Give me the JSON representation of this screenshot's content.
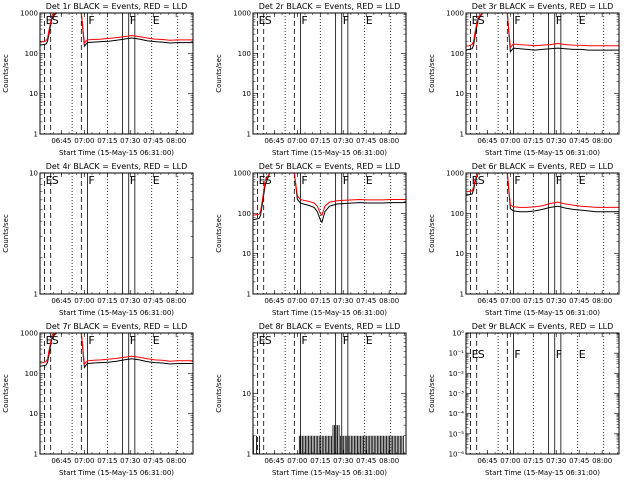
{
  "figure": {
    "colors": {
      "events": "#000000",
      "lld": "#ff0000",
      "frame": "#000000"
    },
    "ylabel": "Counts/sec",
    "xlabel": "Start Time (15-May-15 06:31:00)",
    "x_tick_labels": [
      "06:45",
      "07:00",
      "07:15",
      "07:30",
      "07:45",
      "08:00"
    ],
    "x_tick_values_min": [
      14,
      29,
      44,
      59,
      74,
      89
    ],
    "xlim_min": [
      0,
      100
    ],
    "markers": [
      {
        "label": "E",
        "x": 3,
        "style": "dashed"
      },
      {
        "label": "S",
        "x": 7,
        "style": "dashed"
      },
      {
        "label": "",
        "x": 21,
        "style": "dotted"
      },
      {
        "label": "",
        "x": 27,
        "style": "dashed"
      },
      {
        "label": "F",
        "x": 31,
        "style": "solid"
      },
      {
        "label": "",
        "x": 44,
        "style": "dotted"
      },
      {
        "label": "",
        "x": 54,
        "style": "solid"
      },
      {
        "label": "F",
        "x": 58,
        "style": "solid"
      },
      {
        "label": "",
        "x": 62,
        "style": "solid"
      },
      {
        "label": "E",
        "x": 73,
        "style": "dotted"
      },
      {
        "label": "",
        "x": 90,
        "style": "dotted"
      }
    ]
  },
  "chart_data": [
    {
      "type": "line",
      "det": "1r",
      "title": "Det 1r BLACK = Events, RED = LLD",
      "scale": "log",
      "ylim": [
        1,
        1000
      ],
      "ytick_labels": [
        "1",
        "10",
        "100",
        "1000"
      ],
      "ytick_values": [
        1,
        10,
        100,
        1000
      ],
      "marker_labels_y": 1000,
      "series": [
        {
          "name": "Events",
          "color": "#000000",
          "x": [
            0,
            2,
            4,
            5,
            6,
            8,
            11,
            13,
            16,
            20,
            25,
            27,
            29,
            31,
            35,
            40,
            45,
            50,
            55,
            60,
            65,
            70,
            75,
            80,
            85,
            90,
            95,
            100
          ],
          "y": [
            160,
            165,
            170,
            200,
            320,
            800,
            1000,
            1000,
            1000,
            1000,
            1000,
            1000,
            150,
            185,
            190,
            195,
            200,
            210,
            225,
            240,
            225,
            205,
            195,
            190,
            180,
            185,
            185,
            185
          ]
        },
        {
          "name": "LLD",
          "color": "#ff0000",
          "x": [
            0,
            2,
            4,
            5,
            6,
            8,
            11,
            13,
            16,
            20,
            25,
            27,
            29,
            31,
            35,
            40,
            45,
            50,
            55,
            60,
            65,
            70,
            75,
            80,
            85,
            90,
            95,
            100
          ],
          "y": [
            190,
            195,
            205,
            240,
            400,
            900,
            1000,
            1000,
            1000,
            1000,
            1000,
            1000,
            180,
            215,
            220,
            225,
            235,
            245,
            260,
            275,
            260,
            240,
            225,
            220,
            210,
            215,
            215,
            215
          ]
        }
      ]
    },
    {
      "type": "line",
      "det": "2r",
      "title": "Det 2r BLACK = Events, RED = LLD",
      "scale": "log",
      "ylim": [
        1,
        1000
      ],
      "ytick_labels": [
        "1",
        "10",
        "100",
        "1000"
      ],
      "ytick_values": [
        1,
        10,
        100,
        1000
      ],
      "marker_labels_y": 1000,
      "series": []
    },
    {
      "type": "line",
      "det": "3r",
      "title": "Det 3r BLACK = Events, RED = LLD",
      "scale": "log",
      "ylim": [
        1,
        1000
      ],
      "ytick_labels": [
        "1",
        "10",
        "100",
        "1000"
      ],
      "ytick_values": [
        1,
        10,
        100,
        1000
      ],
      "marker_labels_y": 1000,
      "series": [
        {
          "name": "Events",
          "color": "#000000",
          "x": [
            0,
            2,
            4,
            5,
            6,
            8,
            11,
            13,
            16,
            20,
            25,
            27,
            29,
            31,
            35,
            40,
            45,
            50,
            55,
            60,
            65,
            70,
            75,
            80,
            85,
            90,
            95,
            100
          ],
          "y": [
            120,
            125,
            130,
            160,
            280,
            700,
            1000,
            1000,
            1000,
            1000,
            1000,
            1000,
            110,
            135,
            130,
            125,
            120,
            125,
            130,
            135,
            130,
            125,
            125,
            120,
            120,
            120,
            120,
            120
          ]
        },
        {
          "name": "LLD",
          "color": "#ff0000",
          "x": [
            0,
            2,
            4,
            5,
            6,
            8,
            11,
            13,
            16,
            20,
            25,
            27,
            29,
            31,
            35,
            40,
            45,
            50,
            55,
            60,
            65,
            70,
            75,
            80,
            85,
            90,
            95,
            100
          ],
          "y": [
            150,
            155,
            165,
            200,
            350,
            800,
            1000,
            1000,
            1000,
            1000,
            1000,
            1000,
            140,
            170,
            165,
            160,
            155,
            160,
            165,
            175,
            165,
            160,
            158,
            155,
            155,
            155,
            155,
            155
          ]
        }
      ]
    },
    {
      "type": "line",
      "det": "4r",
      "title": "Det 4r BLACK = Events, RED = LLD",
      "scale": "log",
      "ylim": [
        1,
        10
      ],
      "ytick_labels": [
        "1",
        "10"
      ],
      "ytick_values": [
        1,
        10
      ],
      "marker_labels_y": 10,
      "series": []
    },
    {
      "type": "line",
      "det": "5r",
      "title": "Det 5r BLACK = Events, RED = LLD",
      "scale": "log",
      "ylim": [
        1,
        1000
      ],
      "ytick_labels": [
        "1",
        "10",
        "100",
        "1000"
      ],
      "ytick_values": [
        1,
        10,
        100,
        1000
      ],
      "marker_labels_y": 1000,
      "series": [
        {
          "name": "Events",
          "color": "#000000",
          "x": [
            0,
            2,
            4,
            5,
            6,
            8,
            11,
            13,
            16,
            20,
            25,
            27,
            29,
            31,
            33,
            36,
            40,
            42,
            44,
            45,
            47,
            50,
            55,
            60,
            65,
            70,
            75,
            80,
            85,
            90,
            95,
            100
          ],
          "y": [
            70,
            72,
            75,
            90,
            160,
            500,
            1000,
            1000,
            1000,
            1000,
            1000,
            1000,
            220,
            180,
            170,
            160,
            140,
            110,
            70,
            60,
            110,
            150,
            170,
            175,
            180,
            185,
            180,
            180,
            180,
            185,
            185,
            185
          ]
        },
        {
          "name": "LLD",
          "color": "#ff0000",
          "x": [
            0,
            2,
            4,
            5,
            6,
            8,
            11,
            13,
            16,
            20,
            25,
            27,
            29,
            31,
            33,
            36,
            40,
            42,
            44,
            45,
            47,
            50,
            55,
            60,
            65,
            70,
            75,
            80,
            85,
            90,
            95,
            100
          ],
          "y": [
            90,
            92,
            95,
            115,
            200,
            650,
            1000,
            1000,
            1000,
            1000,
            1000,
            1000,
            270,
            220,
            210,
            200,
            180,
            150,
            100,
            90,
            150,
            190,
            205,
            210,
            215,
            220,
            215,
            215,
            215,
            220,
            220,
            220
          ]
        }
      ]
    },
    {
      "type": "line",
      "det": "6r",
      "title": "Det 6r BLACK = Events, RED = LLD",
      "scale": "log",
      "ylim": [
        1,
        1000
      ],
      "ytick_labels": [
        "1",
        "10",
        "100",
        "1000"
      ],
      "ytick_values": [
        1,
        10,
        100,
        1000
      ],
      "marker_labels_y": 1000,
      "series": [
        {
          "name": "Events",
          "color": "#000000",
          "x": [
            0,
            2,
            4,
            5,
            6,
            8,
            11,
            13,
            16,
            20,
            25,
            27,
            29,
            31,
            35,
            40,
            45,
            50,
            55,
            60,
            65,
            70,
            75,
            80,
            85,
            90,
            95,
            100
          ],
          "y": [
            280,
            290,
            300,
            380,
            600,
            1000,
            1000,
            1000,
            1000,
            1000,
            1000,
            1000,
            130,
            115,
            110,
            110,
            115,
            125,
            140,
            150,
            135,
            125,
            120,
            115,
            110,
            110,
            110,
            110
          ]
        },
        {
          "name": "LLD",
          "color": "#ff0000",
          "x": [
            0,
            2,
            4,
            5,
            6,
            8,
            11,
            13,
            16,
            20,
            25,
            27,
            29,
            31,
            35,
            40,
            45,
            50,
            55,
            60,
            65,
            70,
            75,
            80,
            85,
            90,
            95,
            100
          ],
          "y": [
            340,
            350,
            360,
            450,
            700,
            1000,
            1000,
            1000,
            1000,
            1000,
            1000,
            1000,
            160,
            145,
            140,
            140,
            145,
            155,
            175,
            190,
            170,
            160,
            150,
            145,
            140,
            140,
            140,
            140
          ]
        }
      ]
    },
    {
      "type": "line",
      "det": "7r",
      "title": "Det 7r BLACK = Events, RED = LLD",
      "scale": "log",
      "ylim": [
        1,
        1000
      ],
      "ytick_labels": [
        "1",
        "10",
        "100",
        "1000"
      ],
      "ytick_values": [
        1,
        10,
        100,
        1000
      ],
      "marker_labels_y": 1000,
      "series": [
        {
          "name": "Events",
          "color": "#000000",
          "x": [
            0,
            2,
            4,
            5,
            6,
            8,
            11,
            13,
            16,
            20,
            25,
            27,
            29,
            31,
            35,
            40,
            45,
            50,
            55,
            60,
            65,
            70,
            75,
            80,
            85,
            90,
            95,
            100
          ],
          "y": [
            150,
            155,
            160,
            190,
            310,
            800,
            1000,
            1000,
            1000,
            1000,
            1000,
            1000,
            140,
            175,
            180,
            185,
            190,
            200,
            215,
            230,
            215,
            195,
            185,
            180,
            170,
            175,
            175,
            175
          ]
        },
        {
          "name": "LLD",
          "color": "#ff0000",
          "x": [
            0,
            2,
            4,
            5,
            6,
            8,
            11,
            13,
            16,
            20,
            25,
            27,
            29,
            31,
            35,
            40,
            45,
            50,
            55,
            60,
            65,
            70,
            75,
            80,
            85,
            90,
            95,
            100
          ],
          "y": [
            180,
            185,
            195,
            230,
            390,
            900,
            1000,
            1000,
            1000,
            1000,
            1000,
            1000,
            170,
            205,
            210,
            215,
            225,
            235,
            250,
            265,
            250,
            230,
            215,
            210,
            200,
            205,
            205,
            205
          ]
        }
      ]
    },
    {
      "type": "bar",
      "det": "8r",
      "title": "Det 8r BLACK = Events, RED = LLD",
      "scale": "log",
      "ylim": [
        1,
        100
      ],
      "ytick_labels": [
        "1",
        "10"
      ],
      "ytick_values": [
        1,
        10
      ],
      "marker_labels_y": 100,
      "bars": {
        "x": [
          0,
          2,
          4,
          30,
          31,
          32,
          33,
          34,
          35,
          36,
          37,
          38,
          39,
          40,
          41,
          42,
          43,
          44,
          45,
          46,
          47,
          48,
          49,
          50,
          51,
          52,
          53,
          54,
          55,
          56,
          57,
          58,
          59,
          60,
          61,
          62,
          63,
          64,
          65,
          66,
          67,
          68,
          69,
          70,
          71,
          72,
          73,
          74,
          75,
          76,
          77,
          78,
          79,
          80,
          81,
          82,
          83,
          84,
          85,
          86,
          87,
          88,
          89,
          90,
          91,
          92,
          93,
          94,
          95,
          96,
          97,
          98
        ],
        "y": [
          2,
          2,
          2,
          2,
          2,
          2,
          2,
          2,
          2,
          2,
          2,
          2,
          2,
          2,
          2,
          2,
          2,
          2,
          2,
          2,
          2,
          2,
          2,
          2,
          2,
          3,
          3,
          3,
          3,
          3,
          2,
          2,
          2,
          2,
          2,
          2,
          2,
          2,
          2,
          2,
          2,
          2,
          2,
          2,
          2,
          2,
          2,
          2,
          2,
          2,
          2,
          2,
          2,
          2,
          2,
          2,
          2,
          2,
          2,
          2,
          2,
          2,
          2,
          2,
          2,
          2,
          2,
          2,
          2,
          2,
          2,
          2
        ]
      }
    },
    {
      "type": "line",
      "det": "9r",
      "title": "Det 9r BLACK = Events, RED = LLD",
      "scale": "log",
      "ylim": [
        1,
        1e-06
      ],
      "ytick_labels": [
        "10⁰",
        "10⁻¹",
        "10⁻²",
        "10⁻³",
        "10⁻⁴",
        "10⁻⁵",
        "10⁻⁶"
      ],
      "ytick_values": [
        1,
        0.1,
        0.01,
        0.001,
        0.0001,
        1e-05,
        1e-06
      ],
      "marker_labels_y": 0.2,
      "series": []
    }
  ]
}
